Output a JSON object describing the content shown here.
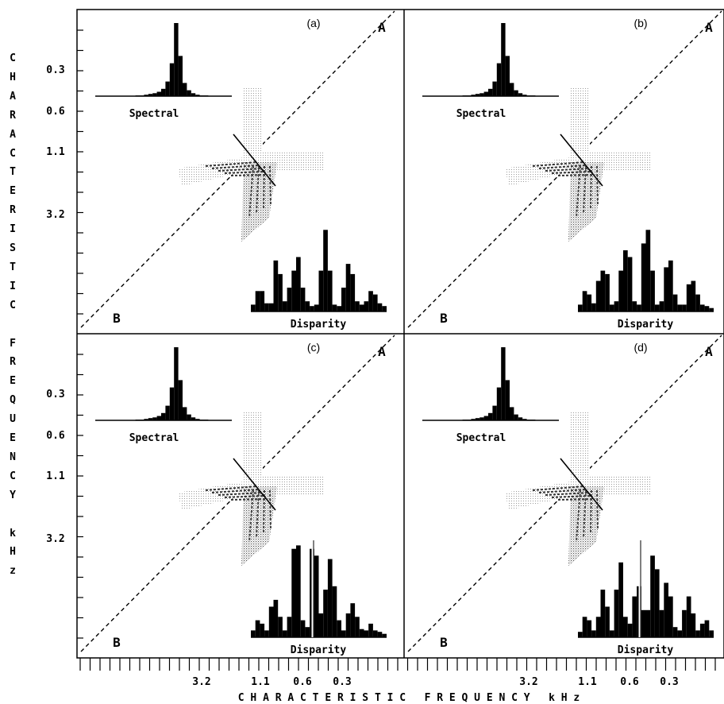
{
  "y_axis_title": [
    "C",
    "H",
    "A",
    "R",
    "A",
    "C",
    "T",
    "E",
    "R",
    "I",
    "S",
    "T",
    "I",
    "C",
    "",
    "F",
    "R",
    "E",
    "Q",
    "U",
    "E",
    "N",
    "C",
    "Y",
    "",
    "k",
    "H",
    "z"
  ],
  "x_axis_title": "C H A R A C T E R I S T I C   F R E Q U E N C Y   k H z",
  "y_ticks": [
    "0.3",
    "0.6",
    "1.1",
    "3.2"
  ],
  "x_ticks": [
    "3.2",
    "1.1",
    "0.6",
    "0.3"
  ],
  "panels": [
    {
      "id": "a",
      "label": "(a)",
      "corner_a": "A",
      "corner_b": "B",
      "spectral_label": "Spectral",
      "disparity_label": "Disparity"
    },
    {
      "id": "b",
      "label": "(b)",
      "corner_a": "A",
      "corner_b": "B",
      "spectral_label": "Spectral",
      "disparity_label": "Disparity"
    },
    {
      "id": "c",
      "label": "(c)",
      "corner_a": "A",
      "corner_b": "B",
      "spectral_label": "Spectral",
      "disparity_label": "Disparity"
    },
    {
      "id": "d",
      "label": "(d)",
      "corner_a": "A",
      "corner_b": "B",
      "spectral_label": "Spectral",
      "disparity_label": "Disparity"
    }
  ],
  "spectral_histogram": [
    0,
    0,
    0,
    0,
    0,
    0,
    0,
    0,
    0,
    1,
    1,
    2,
    3,
    4,
    6,
    10,
    20,
    45,
    100,
    55,
    18,
    8,
    4,
    2,
    1,
    1,
    0,
    0,
    0,
    0,
    0,
    0,
    0,
    0,
    0
  ],
  "disparity_histograms": {
    "a": [
      10,
      30,
      30,
      12,
      12,
      75,
      55,
      15,
      35,
      60,
      80,
      35,
      15,
      8,
      10,
      60,
      120,
      60,
      10,
      8,
      35,
      70,
      55,
      15,
      10,
      15,
      30,
      25,
      12,
      8
    ],
    "b": [
      10,
      30,
      25,
      12,
      45,
      60,
      55,
      10,
      15,
      60,
      90,
      80,
      15,
      10,
      100,
      120,
      60,
      10,
      15,
      65,
      75,
      25,
      10,
      10,
      40,
      45,
      25,
      10,
      8,
      5
    ],
    "c": [
      10,
      25,
      20,
      10,
      45,
      55,
      30,
      10,
      30,
      130,
      135,
      25,
      15,
      130,
      120,
      35,
      70,
      115,
      75,
      25,
      10,
      35,
      50,
      30,
      12,
      10,
      20,
      10,
      8,
      5
    ],
    "d": [
      8,
      30,
      25,
      10,
      30,
      70,
      45,
      10,
      70,
      110,
      30,
      20,
      60,
      75,
      40,
      40,
      120,
      100,
      40,
      80,
      60,
      15,
      10,
      40,
      60,
      35,
      10,
      20,
      25,
      10
    ]
  },
  "disparity_bar_present": {
    "a": false,
    "b": false,
    "c": true,
    "d": true
  }
}
